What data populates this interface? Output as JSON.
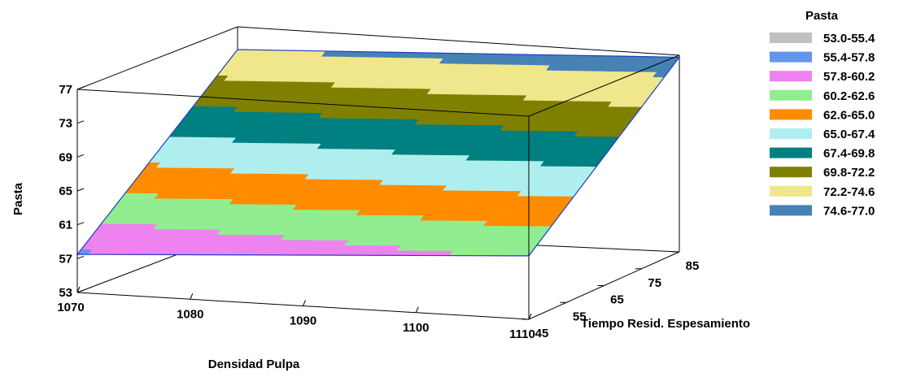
{
  "chart_data": {
    "type": "surface3d",
    "zlabel": "Pasta",
    "xlabel": "Densidad Pulpa",
    "ylabel": "Tiempo Resid. Espesamiento",
    "x_ticks": [
      "1070",
      "1080",
      "1090",
      "1100",
      "1110"
    ],
    "y_ticks": [
      "45",
      "55",
      "65",
      "75",
      "85"
    ],
    "z_ticks": [
      "53",
      "57",
      "61",
      "65",
      "69",
      "73",
      "77"
    ],
    "xlim": [
      1070,
      1110
    ],
    "ylim": [
      45,
      85
    ],
    "zlim": [
      53,
      77
    ],
    "legend": {
      "title": "Pasta",
      "position": "right",
      "items": [
        {
          "label": "53.0-55.4",
          "color": "#c0c0c0"
        },
        {
          "label": "55.4-57.8",
          "color": "#6495ed"
        },
        {
          "label": "57.8-60.2",
          "color": "#ee82ee"
        },
        {
          "label": "60.2-62.6",
          "color": "#90ee90"
        },
        {
          "label": "62.6-65.0",
          "color": "#ff8c00"
        },
        {
          "label": "65.0-67.4",
          "color": "#afeeee"
        },
        {
          "label": "67.4-69.8",
          "color": "#008080"
        },
        {
          "label": "69.8-72.2",
          "color": "#808000"
        },
        {
          "label": "72.2-74.6",
          "color": "#f0e68c"
        },
        {
          "label": "74.6-77.0",
          "color": "#4682b4"
        }
      ]
    },
    "surface_corners": [
      {
        "x": 1070,
        "y": 45,
        "z": 57.5
      },
      {
        "x": 1110,
        "y": 45,
        "z": 60.5
      },
      {
        "x": 1110,
        "y": 85,
        "z": 76.0
      },
      {
        "x": 1070,
        "y": 85,
        "z": 74.5
      }
    ]
  }
}
